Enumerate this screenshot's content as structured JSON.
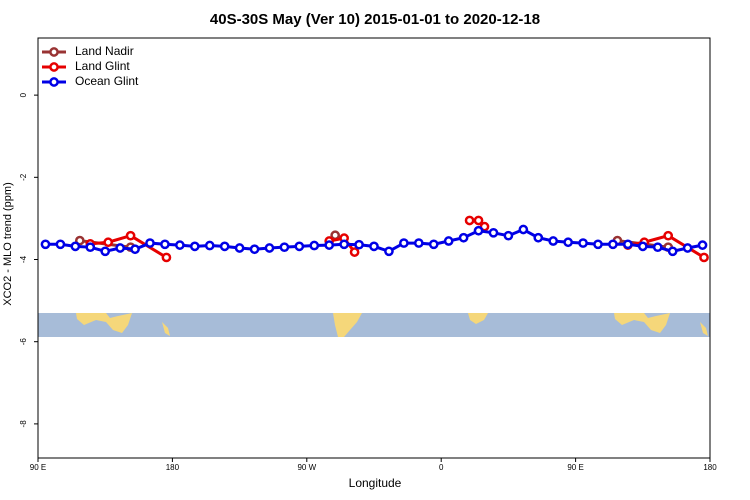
{
  "chart_data": {
    "type": "line",
    "title": "40S-30S May (Ver 10)   2015-01-01 to 2020-12-18",
    "x_label": "Longitude",
    "y_label": "XCO2 - MLO trend (ppm)",
    "xlim": [
      90,
      540
    ],
    "xticks": [
      {
        "value": 90,
        "label": "90 E"
      },
      {
        "value": 180,
        "label": "180"
      },
      {
        "value": 270,
        "label": "90 W"
      },
      {
        "value": 360,
        "label": "0"
      },
      {
        "value": 450,
        "label": "90 E"
      },
      {
        "value": 540,
        "label": "180"
      }
    ],
    "ylim": [
      -8.83,
      1.39
    ],
    "yticks": [
      0,
      -2,
      -4,
      -6,
      -8
    ],
    "legend": "top-left",
    "series": [
      {
        "name": "Land Nadir",
        "color": "#993333",
        "x": [
          118,
          152,
          null,
          289,
          null,
          478,
          512
        ],
        "values": [
          -3.54,
          -3.7,
          null,
          -3.41,
          null,
          -3.54,
          -3.7
        ]
      },
      {
        "name": "Land Glint",
        "color": "#e60000",
        "x": [
          125,
          137,
          152,
          176,
          null,
          285,
          295,
          302,
          null,
          379,
          385,
          389,
          null,
          485,
          496,
          512,
          536
        ],
        "values": [
          -3.62,
          -3.58,
          -3.42,
          -3.95,
          null,
          -3.55,
          -3.48,
          -3.82,
          null,
          -3.05,
          -3.05,
          -3.2,
          null,
          -3.65,
          -3.58,
          -3.42,
          -3.95
        ]
      },
      {
        "name": "Ocean Glint",
        "color": "#0000e6",
        "x": [
          95,
          105,
          115,
          125,
          135,
          145,
          155,
          165,
          175,
          185,
          195,
          205,
          215,
          225,
          235,
          245,
          255,
          265,
          275,
          285,
          295,
          305,
          315,
          325,
          335,
          345,
          355,
          365,
          375,
          385,
          395,
          405,
          415,
          425,
          435,
          445,
          455,
          465,
          475,
          485,
          495,
          505,
          515,
          525,
          535
        ],
        "values": [
          -3.63,
          -3.63,
          -3.68,
          -3.7,
          -3.8,
          -3.72,
          -3.75,
          -3.6,
          -3.63,
          -3.65,
          -3.68,
          -3.66,
          -3.68,
          -3.72,
          -3.75,
          -3.72,
          -3.7,
          -3.68,
          -3.66,
          -3.65,
          -3.63,
          -3.64,
          -3.68,
          -3.8,
          -3.6,
          -3.6,
          -3.63,
          -3.55,
          -3.47,
          -3.3,
          -3.35,
          -3.42,
          -3.27,
          -3.47,
          -3.55,
          -3.58,
          -3.6,
          -3.63,
          -3.63,
          -3.63,
          -3.68,
          -3.7,
          -3.8,
          -3.72,
          -3.65
        ]
      }
    ]
  }
}
